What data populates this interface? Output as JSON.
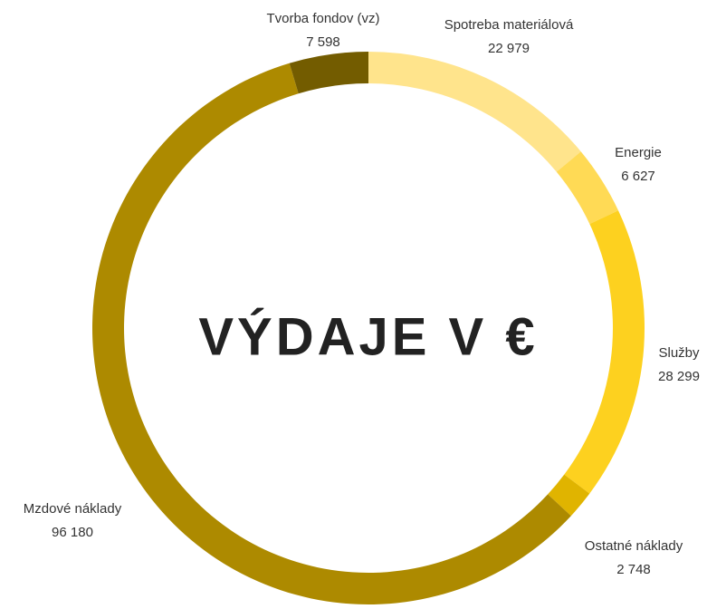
{
  "chart_data": {
    "type": "donut",
    "title": "VÝDAJE V €",
    "categories": [
      "Spotreba materiálová",
      "Energie",
      "Služby",
      "Ostatné náklady",
      "Mzdové náklady",
      "Tvorba fondov (vz)"
    ],
    "values": [
      22979,
      6627,
      28299,
      2748,
      96180,
      7598
    ],
    "value_labels": [
      "22 979",
      "6 627",
      "28 299",
      "2 748",
      "96 180",
      "7 598"
    ],
    "colors": [
      "#FFE48C",
      "#FFDA55",
      "#FDD11F",
      "#E0B400",
      "#AD8A00",
      "#735C00"
    ]
  }
}
